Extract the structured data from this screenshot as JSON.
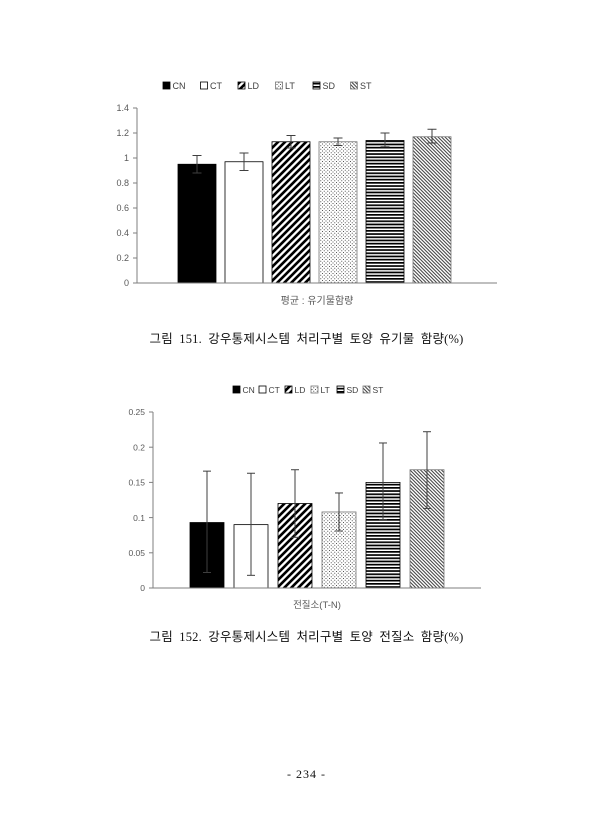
{
  "page": {
    "number": "- 234 -"
  },
  "figures": [
    {
      "caption": "그림 151. 강우통제시스템 처리구별 토양 유기물 함량(%)"
    },
    {
      "caption": "그림 152. 강우통제시스템 처리구별 토양 전질소 함량(%)"
    }
  ],
  "chart_data": [
    {
      "type": "bar",
      "title": "",
      "categories": [
        "CN",
        "CT",
        "LD",
        "LT",
        "SD",
        "ST"
      ],
      "values": [
        0.95,
        0.97,
        1.13,
        1.13,
        1.14,
        1.17
      ],
      "error_low": [
        0.88,
        0.9,
        1.08,
        1.1,
        1.09,
        1.12
      ],
      "error_high": [
        1.02,
        1.04,
        1.18,
        1.16,
        1.2,
        1.23
      ],
      "xlabel": "평균 : 유기물함량",
      "ylabel": "",
      "ylim": [
        0,
        1.4
      ],
      "ytick_step": 0.2,
      "grid": false,
      "legend_position": "top-center",
      "patterns": [
        "solid-black",
        "white-outline",
        "diagonal-up-wide",
        "dots",
        "horizontal-lines",
        "diagonal-down-fine"
      ]
    },
    {
      "type": "bar",
      "title": "",
      "categories": [
        "CN",
        "CT",
        "LD",
        "LT",
        "SD",
        "ST"
      ],
      "values": [
        0.093,
        0.09,
        0.12,
        0.108,
        0.15,
        0.168
      ],
      "error_low": [
        0.022,
        0.018,
        0.072,
        0.081,
        0.097,
        0.113
      ],
      "error_high": [
        0.166,
        0.163,
        0.168,
        0.135,
        0.206,
        0.222
      ],
      "xlabel": "전질소(T-N)",
      "ylabel": "",
      "ylim": [
        0,
        0.25
      ],
      "ytick_step": 0.05,
      "grid": false,
      "legend_position": "top-center",
      "patterns": [
        "solid-black",
        "white-outline",
        "diagonal-up-wide",
        "dots",
        "horizontal-lines",
        "diagonal-down-fine"
      ]
    }
  ],
  "colors": {
    "ink": "#000000",
    "axis_line": "#7f7f7f",
    "tick_text": "#595959",
    "legend_text": "#404040",
    "caption_text": "#111111"
  }
}
